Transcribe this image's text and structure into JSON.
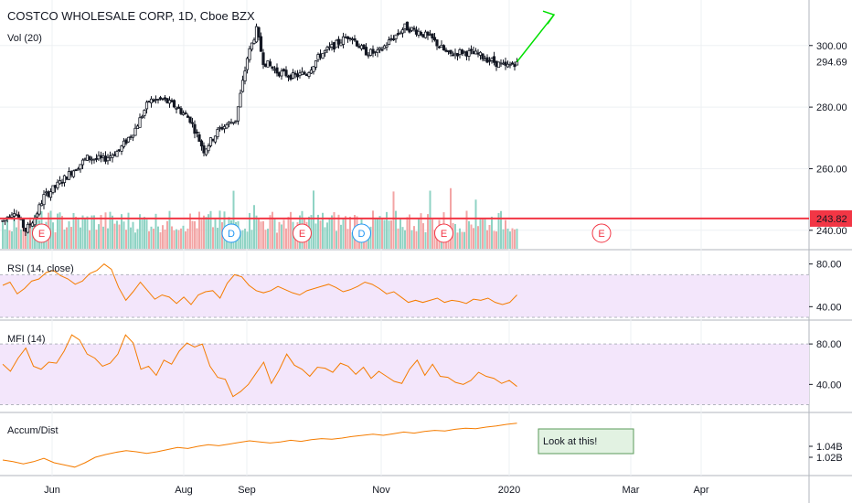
{
  "chart_data": {
    "type": "candlestick",
    "title": "COSTCO WHOLESALE CORP, 1D, Cboe BZX",
    "volume_label": "Vol (20)",
    "x_tick_labels": [
      "Jun",
      "Aug",
      "Sep",
      "Nov",
      "2020",
      "Mar",
      "Apr"
    ],
    "price_axis": {
      "ylim": [
        234,
        313
      ],
      "tick_labels": [
        "300.00",
        "280.00",
        "260.00",
        "240.00"
      ],
      "ticks": [
        300,
        280,
        260,
        240
      ]
    },
    "last_price": {
      "value": 294.69,
      "label": "294.69"
    },
    "horizontal_line": {
      "value": 243.82,
      "label": "243.82",
      "color": "#f23645"
    },
    "price_path": [
      [
        0,
        243.0
      ],
      [
        5,
        246.5
      ],
      [
        10,
        240.0
      ],
      [
        14,
        244.0
      ],
      [
        18,
        251.0
      ],
      [
        23,
        254.0
      ],
      [
        30,
        259.0
      ],
      [
        37,
        263.5
      ],
      [
        44,
        263.0
      ],
      [
        51,
        266.0
      ],
      [
        58,
        273.0
      ],
      [
        64,
        282.0
      ],
      [
        70,
        282.5
      ],
      [
        76,
        280.0
      ],
      [
        82,
        276.0
      ],
      [
        88,
        266.0
      ],
      [
        95,
        273.0
      ],
      [
        102,
        276.0
      ],
      [
        107,
        296.0
      ],
      [
        111,
        305.0
      ],
      [
        114,
        295.0
      ],
      [
        120,
        291.5
      ],
      [
        127,
        290.0
      ],
      [
        133,
        291.0
      ],
      [
        139,
        297.0
      ],
      [
        145,
        300.0
      ],
      [
        152,
        303.5
      ],
      [
        158,
        298.0
      ],
      [
        164,
        297.5
      ],
      [
        170,
        302.0
      ],
      [
        176,
        306.0
      ],
      [
        182,
        304.5
      ],
      [
        188,
        302.0
      ],
      [
        195,
        297.0
      ],
      [
        201,
        298.0
      ],
      [
        208,
        297.0
      ],
      [
        214,
        295.0
      ],
      [
        220,
        293.0
      ],
      [
        225,
        294.69
      ]
    ],
    "earnings_markers": [
      {
        "label": "E",
        "day": 17
      },
      {
        "label": "D",
        "day": 100
      },
      {
        "label": "E",
        "day": 131
      },
      {
        "label": "D",
        "day": 157
      },
      {
        "label": "E",
        "day": 193
      },
      {
        "label": "E",
        "day": 262
      }
    ],
    "projection_arrow": {
      "from_day": 225,
      "from_value": 294.69,
      "to_day": 238,
      "to_value": 307,
      "color": "#00e000"
    },
    "rsi": {
      "label": "RSI (14, close)",
      "ylim": [
        30,
        90
      ],
      "tick_labels": [
        "80.00",
        "40.00"
      ],
      "ticks": [
        80,
        40
      ],
      "band": [
        30,
        70
      ],
      "values": [
        60,
        63,
        52,
        57,
        64,
        66,
        72,
        74,
        69,
        66,
        61,
        64,
        71,
        74,
        80,
        75,
        58,
        46,
        54,
        63,
        55,
        47,
        51,
        49,
        43,
        49,
        42,
        51,
        54,
        55,
        48,
        62,
        70,
        68,
        60,
        55,
        53,
        55,
        59,
        56,
        53,
        51,
        55,
        57,
        59,
        61,
        58,
        54,
        56,
        59,
        63,
        61,
        57,
        52,
        54,
        49,
        44,
        46,
        44,
        46,
        48,
        44,
        46,
        45,
        43,
        47,
        46,
        48,
        44,
        42,
        44,
        51
      ]
    },
    "mfi": {
      "label": "MFI (14)",
      "ylim": [
        15,
        100
      ],
      "tick_labels": [
        "80.00",
        "40.00"
      ],
      "ticks": [
        80,
        40
      ],
      "band": [
        20,
        80
      ],
      "values": [
        60,
        53,
        66,
        76,
        58,
        55,
        62,
        61,
        73,
        89,
        84,
        70,
        66,
        58,
        61,
        70,
        89,
        81,
        55,
        58,
        49,
        64,
        60,
        73,
        81,
        77,
        80,
        58,
        47,
        45,
        28,
        33,
        40,
        51,
        62,
        41,
        54,
        70,
        59,
        55,
        48,
        57,
        56,
        52,
        61,
        58,
        50,
        57,
        46,
        53,
        48,
        43,
        41,
        55,
        64,
        49,
        60,
        48,
        47,
        42,
        40,
        44,
        52,
        48,
        46,
        41,
        44,
        38
      ]
    },
    "accum_dist": {
      "label": "Accum/Dist",
      "ylim": [
        0.99,
        1.095
      ],
      "tick_labels": [
        "1.04B",
        "1.02B"
      ],
      "ticks": [
        1.04,
        1.02
      ],
      "values": [
        1.015,
        1.012,
        1.008,
        1.012,
        1.018,
        1.01,
        1.006,
        1.002,
        1.01,
        1.02,
        1.025,
        1.029,
        1.032,
        1.03,
        1.027,
        1.03,
        1.034,
        1.038,
        1.036,
        1.04,
        1.043,
        1.041,
        1.044,
        1.047,
        1.05,
        1.048,
        1.046,
        1.048,
        1.051,
        1.049,
        1.052,
        1.054,
        1.053,
        1.055,
        1.058,
        1.06,
        1.062,
        1.06,
        1.063,
        1.066,
        1.064,
        1.067,
        1.069,
        1.068,
        1.071,
        1.073,
        1.072,
        1.075,
        1.077,
        1.08,
        1.082
      ]
    },
    "annotation": {
      "text": "Look at this!"
    }
  }
}
